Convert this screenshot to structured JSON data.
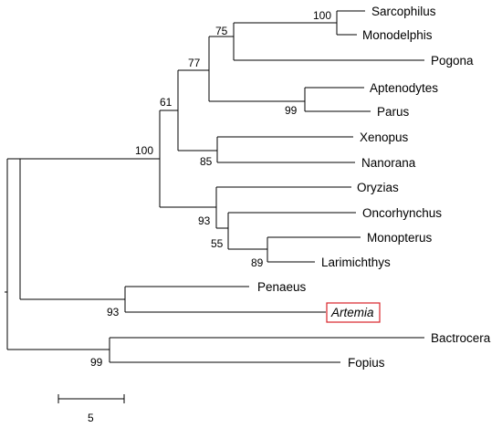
{
  "tree": {
    "leaves": [
      {
        "id": "sarcophilus",
        "label": "Sarcophilus",
        "italic": false,
        "highlight": false
      },
      {
        "id": "monodelphis",
        "label": "Monodelphis",
        "italic": false,
        "highlight": false
      },
      {
        "id": "pogona",
        "label": "Pogona",
        "italic": false,
        "highlight": false
      },
      {
        "id": "aptenodytes",
        "label": "Aptenodytes",
        "italic": false,
        "highlight": false
      },
      {
        "id": "parus",
        "label": "Parus",
        "italic": false,
        "highlight": false
      },
      {
        "id": "xenopus",
        "label": "Xenopus",
        "italic": false,
        "highlight": false
      },
      {
        "id": "nanorana",
        "label": "Nanorana",
        "italic": false,
        "highlight": false
      },
      {
        "id": "oryzias",
        "label": "Oryzias",
        "italic": false,
        "highlight": false
      },
      {
        "id": "oncorhynchus",
        "label": "Oncorhynchus",
        "italic": false,
        "highlight": false
      },
      {
        "id": "monopterus",
        "label": "Monopterus",
        "italic": false,
        "highlight": false
      },
      {
        "id": "larimichthys",
        "label": "Larimichthys",
        "italic": false,
        "highlight": false
      },
      {
        "id": "penaeus",
        "label": "Penaeus",
        "italic": false,
        "highlight": false
      },
      {
        "id": "artemia",
        "label": "Artemia",
        "italic": true,
        "highlight": true
      },
      {
        "id": "bactrocera",
        "label": "Bactrocera",
        "italic": false,
        "highlight": false
      },
      {
        "id": "fopius",
        "label": "Fopius",
        "italic": false,
        "highlight": false
      }
    ],
    "support_values": [
      {
        "node": "sarcophilus-monodelphis",
        "value": "100"
      },
      {
        "node": "mammals-pogona",
        "value": "75"
      },
      {
        "node": "amniotes",
        "value": "77"
      },
      {
        "node": "aptenodytes-parus",
        "value": "99"
      },
      {
        "node": "tetrapods",
        "value": "61"
      },
      {
        "node": "xenopus-nanorana",
        "value": "85"
      },
      {
        "node": "vertebrates",
        "value": "100"
      },
      {
        "node": "fish",
        "value": "93"
      },
      {
        "node": "oncorhynchus-group",
        "value": "55"
      },
      {
        "node": "monopterus-larimichthys",
        "value": "89"
      },
      {
        "node": "penaeus-artemia",
        "value": "93"
      },
      {
        "node": "bactrocera-fopius",
        "value": "99"
      }
    ],
    "highlight_color": "#d8232a",
    "line_color": "#000000"
  },
  "scale_bar": {
    "label": "5"
  }
}
